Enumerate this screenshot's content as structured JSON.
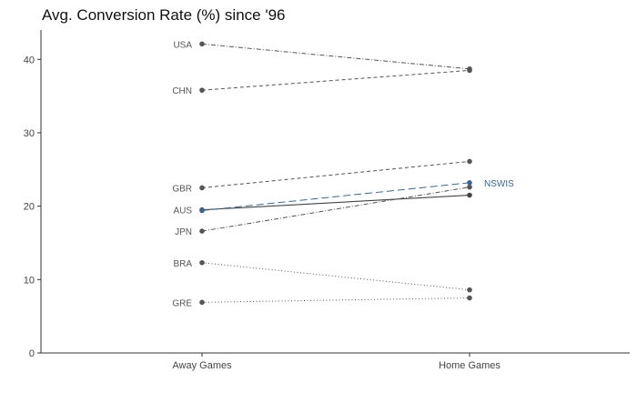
{
  "chart_data": {
    "type": "line",
    "title": "Avg. Conversion Rate (%) since '96",
    "xlabel": "",
    "ylabel": "",
    "categories": [
      "Away Games",
      "Home Games"
    ],
    "ylim": [
      0,
      44
    ],
    "yticks": [
      0,
      10,
      20,
      30,
      40
    ],
    "grid": false,
    "legend": "none",
    "series": [
      {
        "name": "USA",
        "values": [
          42.1,
          38.7
        ],
        "color": "#555555",
        "dash": "dashdot",
        "label_side": "start"
      },
      {
        "name": "CHN",
        "values": [
          35.8,
          38.5
        ],
        "color": "#555555",
        "dash": "dashed",
        "label_side": "start"
      },
      {
        "name": "GBR",
        "values": [
          22.5,
          26.1
        ],
        "color": "#555555",
        "dash": "dashed",
        "label_side": "start"
      },
      {
        "name": "AUS",
        "values": [
          19.5,
          21.5
        ],
        "color": "#444444",
        "dash": "solid",
        "label_side": "start"
      },
      {
        "name": "JPN",
        "values": [
          16.6,
          22.6
        ],
        "color": "#555555",
        "dash": "dashdot",
        "label_side": "start"
      },
      {
        "name": "BRA",
        "values": [
          12.3,
          8.6
        ],
        "color": "#555555",
        "dash": "dotted",
        "label_side": "start"
      },
      {
        "name": "GRE",
        "values": [
          6.9,
          7.5
        ],
        "color": "#555555",
        "dash": "dotted",
        "label_side": "start"
      },
      {
        "name": "NSWIS",
        "values": [
          19.4,
          23.2
        ],
        "color": "#3a6690",
        "dash": "longdash",
        "label_side": "end"
      }
    ]
  }
}
